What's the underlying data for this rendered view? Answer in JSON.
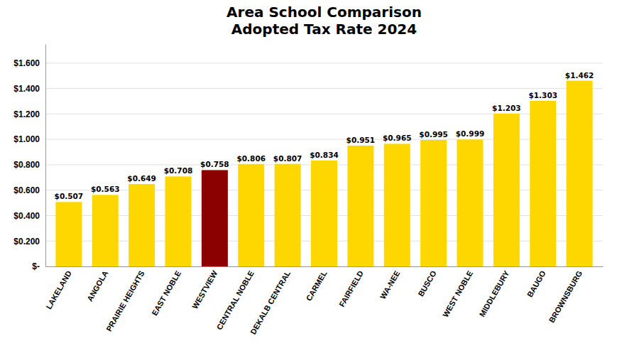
{
  "chart_data": {
    "type": "bar",
    "title": "Area School Comparison",
    "subtitle": "Adopted Tax Rate 2024",
    "categories": [
      "LAKELAND",
      "ANGOLA",
      "PRAIRIE HEIGHTS",
      "EAST NOBLE",
      "WESTVIEW",
      "CENTRAL NOBLE",
      "DEKALB CENTRAL",
      "CARMEL",
      "FAIRFIELD",
      "WA-NEE",
      "BUSCO",
      "WEST NOBLE",
      "MIDDLEBURY",
      "BAUGO",
      "BROWNSBURG"
    ],
    "values": [
      0.507,
      0.563,
      0.649,
      0.708,
      0.758,
      0.806,
      0.807,
      0.834,
      0.951,
      0.965,
      0.995,
      0.999,
      1.203,
      1.303,
      1.462
    ],
    "value_labels": [
      "$0.507",
      "$0.563",
      "$0.649",
      "$0.708",
      "$0.758",
      "$0.806",
      "$0.807",
      "$0.834",
      "$0.951",
      "$0.965",
      "$0.995",
      "$0.999",
      "$1.203",
      "$1.303",
      "$1.462"
    ],
    "data_labels": true,
    "colors": [
      "#FFD700",
      "#FFD700",
      "#FFD700",
      "#FFD700",
      "#8B0000",
      "#FFD700",
      "#FFD700",
      "#FFD700",
      "#FFD700",
      "#FFD700",
      "#FFD700",
      "#FFD700",
      "#FFD700",
      "#FFD700",
      "#FFD700"
    ],
    "ylim": [
      0,
      1.75
    ],
    "yticks": [
      {
        "value": 0,
        "label": "$-"
      },
      {
        "value": 0.2,
        "label": "$0.200"
      },
      {
        "value": 0.4,
        "label": "$0.400"
      },
      {
        "value": 0.6,
        "label": "$0.600"
      },
      {
        "value": 0.8,
        "label": "$0.800"
      },
      {
        "value": 1.0,
        "label": "$1.000"
      },
      {
        "value": 1.2,
        "label": "$1.200"
      },
      {
        "value": 1.4,
        "label": "$1.400"
      },
      {
        "value": 1.6,
        "label": "$1.600"
      }
    ],
    "grid": true
  }
}
